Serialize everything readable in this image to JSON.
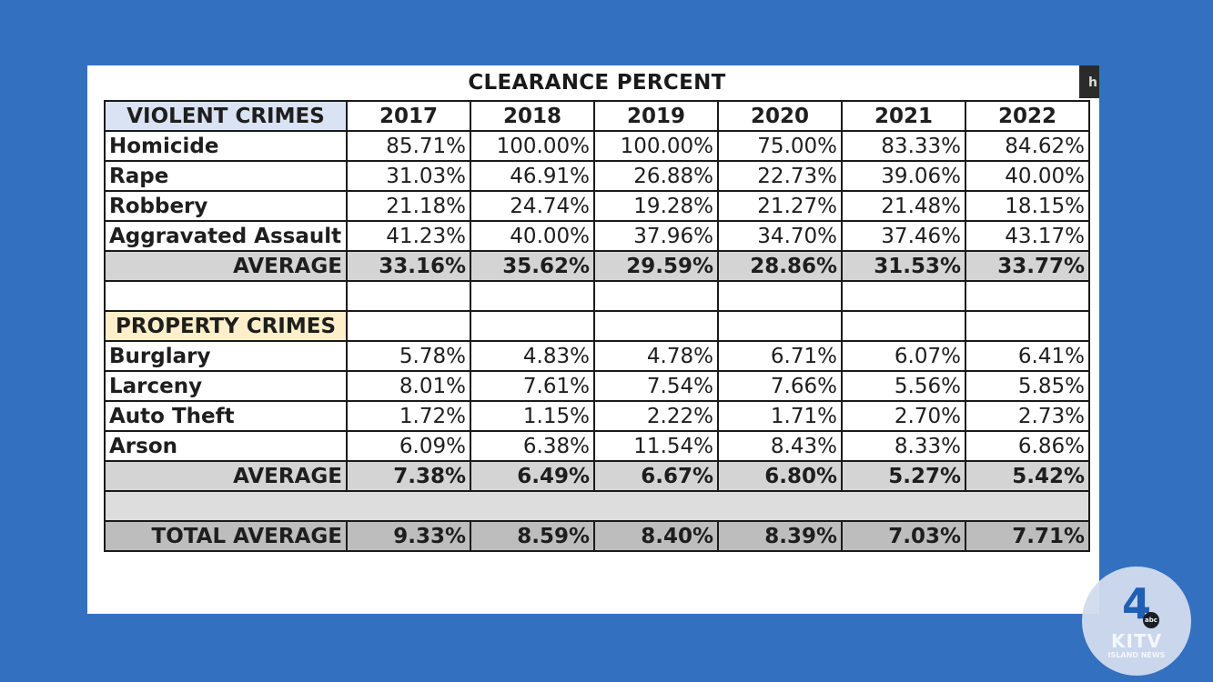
{
  "title": "CLEARANCE PERCENT",
  "corner_tab": "h",
  "years": [
    "2017",
    "2018",
    "2019",
    "2020",
    "2021",
    "2022"
  ],
  "violent": {
    "header": "VIOLENT CRIMES",
    "rows": [
      {
        "label": "Homicide",
        "values": [
          "85.71%",
          "100.00%",
          "100.00%",
          "75.00%",
          "83.33%",
          "84.62%"
        ]
      },
      {
        "label": "Rape",
        "values": [
          "31.03%",
          "46.91%",
          "26.88%",
          "22.73%",
          "39.06%",
          "40.00%"
        ]
      },
      {
        "label": "Robbery",
        "values": [
          "21.18%",
          "24.74%",
          "19.28%",
          "21.27%",
          "21.48%",
          "18.15%"
        ]
      },
      {
        "label": "Aggravated Assault",
        "values": [
          "41.23%",
          "40.00%",
          "37.96%",
          "34.70%",
          "37.46%",
          "43.17%"
        ]
      }
    ],
    "average": {
      "label": "AVERAGE",
      "values": [
        "33.16%",
        "35.62%",
        "29.59%",
        "28.86%",
        "31.53%",
        "33.77%"
      ]
    }
  },
  "property": {
    "header": "PROPERTY CRIMES",
    "rows": [
      {
        "label": "Burglary",
        "values": [
          "5.78%",
          "4.83%",
          "4.78%",
          "6.71%",
          "6.07%",
          "6.41%"
        ]
      },
      {
        "label": "Larceny",
        "values": [
          "8.01%",
          "7.61%",
          "7.54%",
          "7.66%",
          "5.56%",
          "5.85%"
        ]
      },
      {
        "label": "Auto Theft",
        "values": [
          "1.72%",
          "1.15%",
          "2.22%",
          "1.71%",
          "2.70%",
          "2.73%"
        ]
      },
      {
        "label": "Arson",
        "values": [
          "6.09%",
          "6.38%",
          "11.54%",
          "8.43%",
          "8.33%",
          "6.86%"
        ]
      }
    ],
    "average": {
      "label": "AVERAGE",
      "values": [
        "7.38%",
        "6.49%",
        "6.67%",
        "6.80%",
        "5.27%",
        "5.42%"
      ]
    }
  },
  "total": {
    "label": "TOTAL AVERAGE",
    "values": [
      "9.33%",
      "8.59%",
      "8.40%",
      "8.39%",
      "7.03%",
      "7.71%"
    ]
  },
  "badge": {
    "number": "4",
    "network": "abc",
    "name": "KITV",
    "subtitle": "ISLAND NEWS"
  },
  "colors": {
    "background": "#3370c0",
    "violent_header": "#dae3f3",
    "property_header": "#fdefc9",
    "average_row": "#d4d4d4",
    "total_row": "#bdbdbd"
  }
}
